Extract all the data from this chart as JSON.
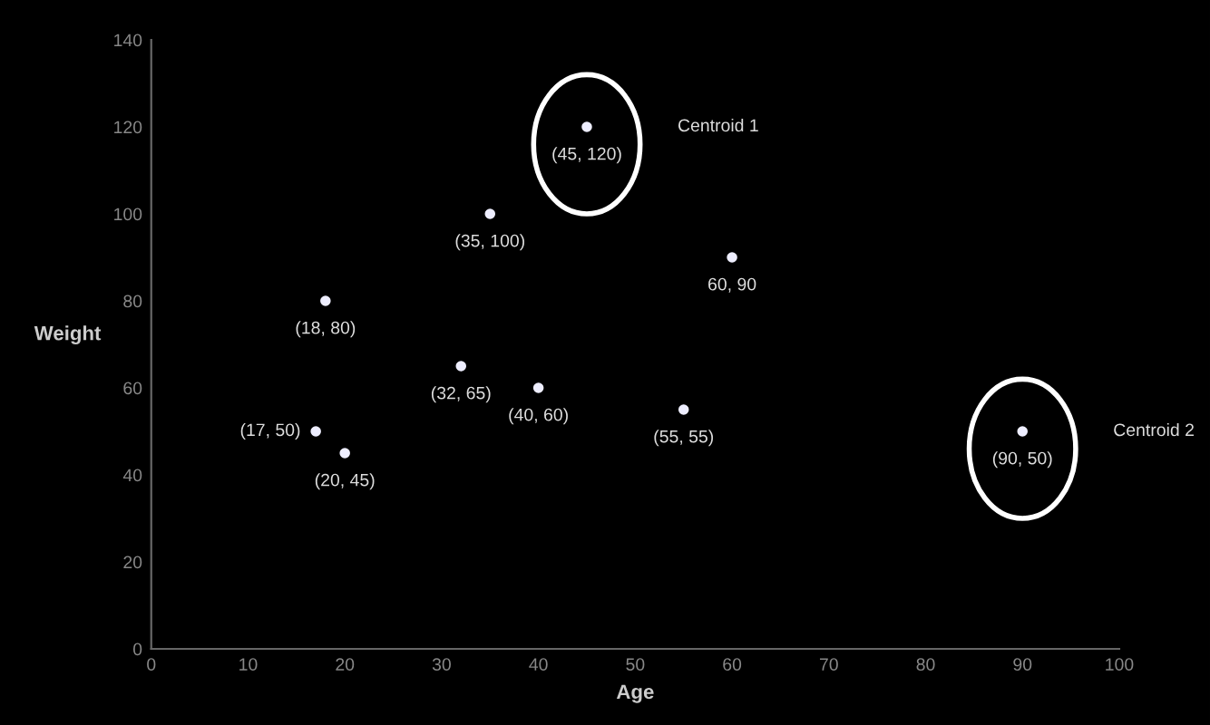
{
  "chart_data": {
    "type": "scatter",
    "xlabel": "Age",
    "ylabel": "Weight",
    "series": [
      {
        "x": [
          17,
          20,
          18,
          32,
          35,
          40,
          55,
          60
        ],
        "values": [
          50,
          45,
          80,
          65,
          100,
          60,
          55,
          90
        ],
        "color": "#eeeeff",
        "value_labels": [
          "(17, 50)",
          "(20, 45)",
          "(18, 80)",
          "(32, 65)",
          "(35, 100)",
          "(40, 60)",
          "(55, 55)",
          "60, 90"
        ]
      },
      {
        "name": "Centroid 1",
        "x": [
          45
        ],
        "values": [
          120
        ],
        "color": "#eeeeff",
        "value_labels": [
          "(45, 120)"
        ]
      },
      {
        "name": "Centroid 2",
        "x": [
          90
        ],
        "values": [
          50
        ],
        "color": "#eeeeff",
        "value_labels": [
          "(90, 50)"
        ]
      }
    ],
    "marker": "circle",
    "xlim": [
      0,
      100
    ],
    "xticks": [
      0,
      10,
      20,
      30,
      40,
      50,
      60,
      70,
      80,
      90,
      100
    ],
    "ylim": [
      0,
      140
    ],
    "yticks": [
      0,
      20,
      40,
      60,
      80,
      100,
      120,
      140
    ],
    "grid": false,
    "legend": false
  }
}
